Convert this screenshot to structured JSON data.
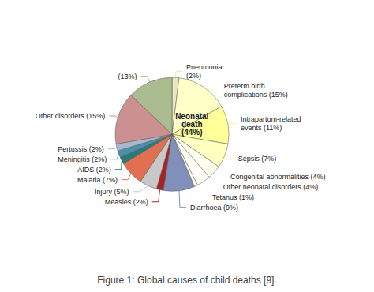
{
  "chart_data": {
    "type": "pie",
    "title": "Figure 1: Global causes of child deaths [9].",
    "categories": [
      "Pneumonia\n(2%)",
      "Preterm birth\ncomplications (15%)",
      "Intrapartum-related\nevents (11%)",
      "Sepsis (7%)",
      "Congenital abnormalities (4%)",
      "Other neonatal disorders (4%)",
      "Tetanus (1%)",
      "Diarrhoea (9%)",
      "Measles (2%)",
      "Injury (5%)",
      "Malaria (7%)",
      "AIDS (2%)",
      "Meningitis (2%)",
      "Pertussis (2%)",
      "Other disorders (15%)",
      "(13%)"
    ],
    "values": [
      2,
      15,
      11,
      7,
      4,
      4,
      1,
      9,
      2,
      5,
      7,
      2,
      2,
      2,
      15,
      13
    ],
    "colors": [
      "#e8e8c0",
      "#ffffc8",
      "#ffff99",
      "#ffffc0",
      "#fffff0",
      "#fffff8",
      "#fffff4",
      "#8090bb",
      "#aa2222",
      "#c8c8c8",
      "#e07050",
      "#2a7a7a",
      "#4a90a8",
      "#a8b8cc",
      "#cc9090",
      "#aabb90"
    ],
    "annotations": [
      "Neonatal\ndeath\n(44%)"
    ]
  }
}
